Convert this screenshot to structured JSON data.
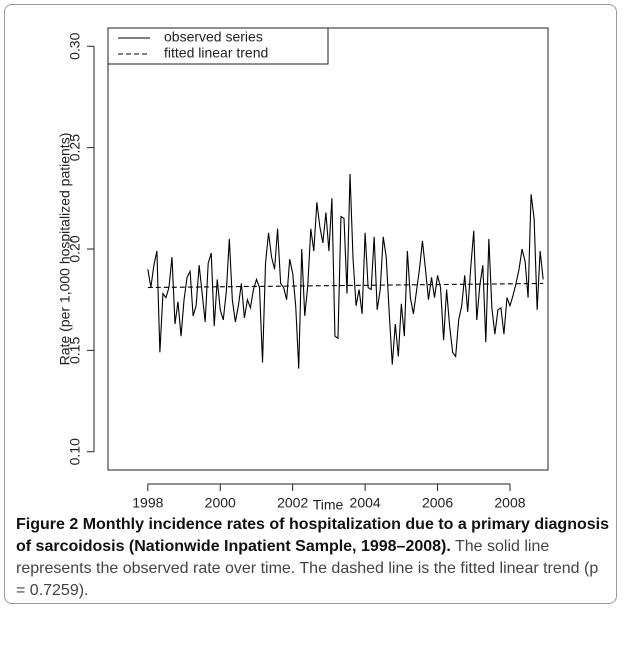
{
  "chart_data": {
    "type": "line",
    "x_label": "Time",
    "y_label": "Rate (per 1,000 hospitalized patients)",
    "xlim": [
      1996.9,
      2009.05
    ],
    "ylim": [
      0.091,
      0.309
    ],
    "xticks": [
      1998,
      2000,
      2002,
      2004,
      2006,
      2008
    ],
    "yticks": [
      {
        "value": 0.1,
        "label": "0.10"
      },
      0.15,
      {
        "value": 0.2,
        "label": "0.20"
      },
      0.25,
      {
        "value": 0.3,
        "label": "0.30"
      }
    ],
    "legend": "top-left",
    "series": [
      {
        "name": "observed series",
        "color": "#000000",
        "dash": "solid",
        "x": [
          1998,
          1998.083,
          1998.167,
          1998.25,
          1998.333,
          1998.417,
          1998.5,
          1998.583,
          1998.667,
          1998.75,
          1998.833,
          1998.917,
          1999,
          1999.083,
          1999.167,
          1999.25,
          1999.333,
          1999.417,
          1999.5,
          1999.583,
          1999.667,
          1999.75,
          1999.833,
          1999.917,
          2000,
          2000.083,
          2000.167,
          2000.25,
          2000.333,
          2000.417,
          2000.5,
          2000.583,
          2000.667,
          2000.75,
          2000.833,
          2000.917,
          2001,
          2001.083,
          2001.167,
          2001.25,
          2001.333,
          2001.417,
          2001.5,
          2001.583,
          2001.667,
          2001.75,
          2001.833,
          2001.917,
          2002,
          2002.083,
          2002.167,
          2002.25,
          2002.333,
          2002.417,
          2002.5,
          2002.583,
          2002.667,
          2002.75,
          2002.833,
          2002.917,
          2003,
          2003.083,
          2003.167,
          2003.25,
          2003.333,
          2003.417,
          2003.5,
          2003.583,
          2003.667,
          2003.75,
          2003.833,
          2003.917,
          2004,
          2004.083,
          2004.167,
          2004.25,
          2004.333,
          2004.417,
          2004.5,
          2004.583,
          2004.667,
          2004.75,
          2004.833,
          2004.917,
          2005,
          2005.083,
          2005.167,
          2005.25,
          2005.333,
          2005.417,
          2005.5,
          2005.583,
          2005.667,
          2005.75,
          2005.833,
          2005.917,
          2006,
          2006.083,
          2006.167,
          2006.25,
          2006.333,
          2006.417,
          2006.5,
          2006.583,
          2006.667,
          2006.75,
          2006.833,
          2006.917,
          2007,
          2007.083,
          2007.167,
          2007.25,
          2007.333,
          2007.417,
          2007.5,
          2007.583,
          2007.667,
          2007.75,
          2007.833,
          2007.917,
          2008,
          2008.083,
          2008.167,
          2008.25,
          2008.333,
          2008.417,
          2008.5,
          2008.583,
          2008.667,
          2008.75,
          2008.833,
          2008.917
        ],
        "values": [
          0.19,
          0.181,
          0.192,
          0.199,
          0.149,
          0.178,
          0.176,
          0.181,
          0.196,
          0.163,
          0.174,
          0.157,
          0.175,
          0.186,
          0.189,
          0.167,
          0.172,
          0.192,
          0.178,
          0.164,
          0.193,
          0.198,
          0.162,
          0.185,
          0.17,
          0.165,
          0.179,
          0.205,
          0.175,
          0.164,
          0.172,
          0.183,
          0.166,
          0.175,
          0.171,
          0.18,
          0.185,
          0.181,
          0.144,
          0.193,
          0.208,
          0.196,
          0.19,
          0.21,
          0.183,
          0.181,
          0.175,
          0.195,
          0.188,
          0.172,
          0.141,
          0.2,
          0.167,
          0.182,
          0.21,
          0.199,
          0.223,
          0.211,
          0.203,
          0.218,
          0.199,
          0.225,
          0.157,
          0.156,
          0.216,
          0.215,
          0.178,
          0.237,
          0.195,
          0.172,
          0.18,
          0.168,
          0.208,
          0.181,
          0.18,
          0.206,
          0.17,
          0.18,
          0.206,
          0.196,
          0.168,
          0.143,
          0.163,
          0.147,
          0.173,
          0.157,
          0.199,
          0.176,
          0.168,
          0.179,
          0.19,
          0.204,
          0.19,
          0.175,
          0.186,
          0.176,
          0.187,
          0.181,
          0.155,
          0.18,
          0.162,
          0.149,
          0.147,
          0.165,
          0.172,
          0.187,
          0.169,
          0.191,
          0.209,
          0.165,
          0.182,
          0.192,
          0.154,
          0.205,
          0.171,
          0.158,
          0.17,
          0.171,
          0.158,
          0.176,
          0.172,
          0.177,
          0.183,
          0.19,
          0.2,
          0.194,
          0.176,
          0.227,
          0.215,
          0.17,
          0.199,
          0.185
        ]
      },
      {
        "name": "fitted linear trend",
        "color": "#000000",
        "dash": "dashed",
        "x": [
          1998,
          2008.917
        ],
        "values": [
          0.181,
          0.183
        ]
      }
    ]
  },
  "caption": {
    "label": "Figure 2",
    "title": "Monthly incidence rates of hospitalization due to a primary diagnosis of sarcoidosis (Nationwide Inpatient Sample, 1998–2008).",
    "text": "The solid line represents the observed rate over time. The dashed line is the fitted linear trend (p = 0.7259)."
  }
}
